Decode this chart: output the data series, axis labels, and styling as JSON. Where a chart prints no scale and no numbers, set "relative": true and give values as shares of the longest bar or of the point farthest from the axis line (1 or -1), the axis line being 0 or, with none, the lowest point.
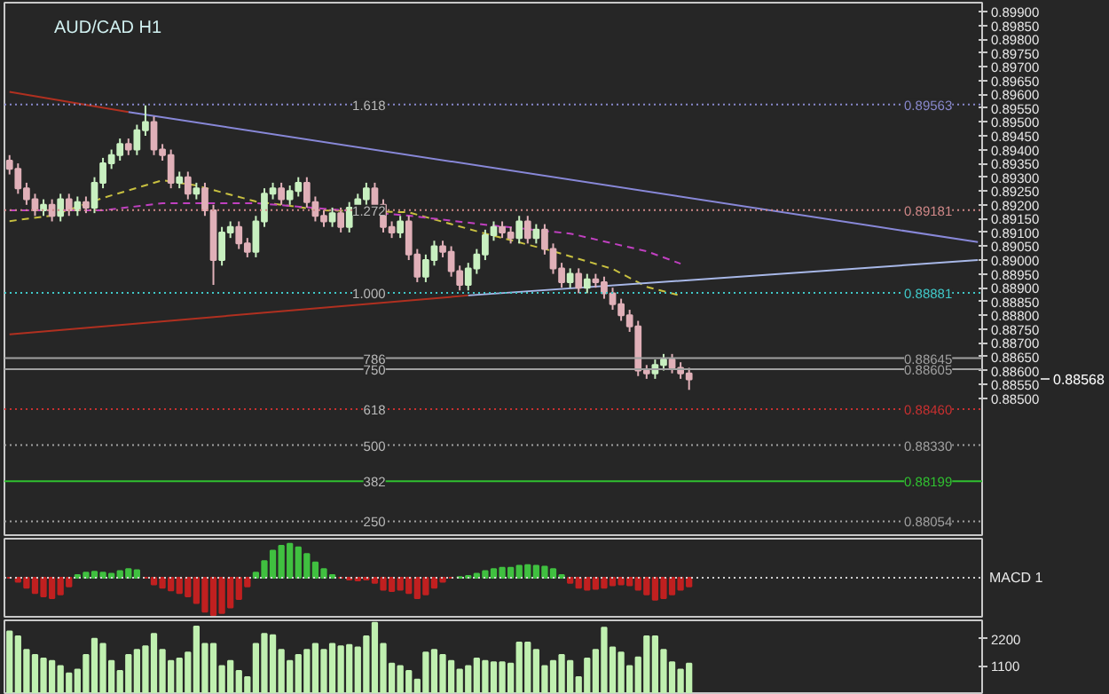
{
  "chart_data": [
    {
      "type": "candlestick",
      "title": "AUD/CAD H1",
      "tick_labels": "y",
      "categories": [
        null,
        null,
        null,
        null,
        null,
        null,
        null,
        null,
        null,
        null,
        null,
        null,
        null,
        null,
        null,
        null,
        null,
        null,
        null,
        null,
        null,
        null,
        null,
        null,
        null,
        null,
        null,
        null,
        null,
        null,
        null,
        null,
        null,
        null,
        null,
        null,
        null,
        null,
        null,
        null,
        null,
        null,
        null,
        null,
        null,
        null,
        null,
        null,
        null,
        null,
        null,
        null,
        null,
        null,
        null,
        null,
        null,
        null,
        null,
        null,
        null,
        null,
        null,
        null,
        null,
        null,
        null,
        null,
        null,
        null,
        null,
        null,
        null,
        null,
        null,
        null,
        null,
        null,
        null,
        null,
        null,
        null,
        null,
        null,
        null,
        null,
        null,
        null,
        null,
        null,
        null,
        null,
        null,
        null,
        null,
        null,
        null,
        null,
        null,
        null,
        null,
        null,
        null,
        null,
        null,
        null,
        null,
        null,
        null,
        null,
        null,
        null,
        null,
        null,
        null
      ],
      "ohlc": [
        [
          0.8936,
          0.8938,
          0.8931,
          0.8933
        ],
        [
          0.8933,
          0.8935,
          0.8924,
          0.8926
        ],
        [
          0.8926,
          0.8928,
          0.892,
          0.8922
        ],
        [
          0.8922,
          0.8924,
          0.8916,
          0.8918
        ],
        [
          0.8918,
          0.8922,
          0.8916,
          0.892
        ],
        [
          0.892,
          0.8922,
          0.8914,
          0.8916
        ],
        [
          0.8916,
          0.8924,
          0.8914,
          0.8922
        ],
        [
          0.8922,
          0.8924,
          0.8916,
          0.8918
        ],
        [
          0.8918,
          0.8923,
          0.8916,
          0.8921
        ],
        [
          0.8921,
          0.8923,
          0.8917,
          0.8919
        ],
        [
          0.8919,
          0.893,
          0.8917,
          0.8928
        ],
        [
          0.8928,
          0.8937,
          0.8926,
          0.8935
        ],
        [
          0.8935,
          0.894,
          0.8933,
          0.8938
        ],
        [
          0.8938,
          0.8944,
          0.8936,
          0.8942
        ],
        [
          0.8942,
          0.8944,
          0.8938,
          0.894
        ],
        [
          0.894,
          0.8949,
          0.8938,
          0.8947
        ],
        [
          0.8947,
          0.8956,
          0.8945,
          0.895
        ],
        [
          0.895,
          0.8952,
          0.8938,
          0.894
        ],
        [
          0.894,
          0.8942,
          0.8936,
          0.8938
        ],
        [
          0.8938,
          0.894,
          0.8926,
          0.8928
        ],
        [
          0.8928,
          0.8932,
          0.8926,
          0.893
        ],
        [
          0.893,
          0.8932,
          0.8922,
          0.8924
        ],
        [
          0.8924,
          0.8928,
          0.8922,
          0.8926
        ],
        [
          0.8926,
          0.8928,
          0.8916,
          0.8918
        ],
        [
          0.8918,
          0.892,
          0.8891,
          0.89
        ],
        [
          0.89,
          0.8912,
          0.8898,
          0.891
        ],
        [
          0.891,
          0.8914,
          0.8908,
          0.8912
        ],
        [
          0.8912,
          0.8914,
          0.8904,
          0.8906
        ],
        [
          0.8906,
          0.8908,
          0.8901,
          0.8903
        ],
        [
          0.8903,
          0.8916,
          0.8901,
          0.8914
        ],
        [
          0.8914,
          0.8926,
          0.8912,
          0.8924
        ],
        [
          0.8924,
          0.8928,
          0.8922,
          0.8926
        ],
        [
          0.8926,
          0.8928,
          0.892,
          0.8922
        ],
        [
          0.8922,
          0.8927,
          0.892,
          0.8925
        ],
        [
          0.8925,
          0.893,
          0.8923,
          0.8928
        ],
        [
          0.8928,
          0.893,
          0.8919,
          0.8921
        ],
        [
          0.8921,
          0.8923,
          0.8914,
          0.8916
        ],
        [
          0.8916,
          0.8918,
          0.8912,
          0.8914
        ],
        [
          0.8914,
          0.8919,
          0.8912,
          0.8917
        ],
        [
          0.8917,
          0.8919,
          0.891,
          0.8912
        ],
        [
          0.8912,
          0.8921,
          0.891,
          0.8919
        ],
        [
          0.8919,
          0.8924,
          0.8917,
          0.8922
        ],
        [
          0.8922,
          0.8928,
          0.892,
          0.8926
        ],
        [
          0.8926,
          0.8928,
          0.8918,
          0.892
        ],
        [
          0.892,
          0.8922,
          0.891,
          0.8912
        ],
        [
          0.8912,
          0.8914,
          0.8908,
          0.891
        ],
        [
          0.891,
          0.8916,
          0.8908,
          0.8914
        ],
        [
          0.8914,
          0.8916,
          0.89,
          0.8902
        ],
        [
          0.8902,
          0.8904,
          0.8892,
          0.8894
        ],
        [
          0.8894,
          0.8902,
          0.8892,
          0.89
        ],
        [
          0.89,
          0.8907,
          0.8898,
          0.8905
        ],
        [
          0.8905,
          0.8907,
          0.8901,
          0.8903
        ],
        [
          0.8903,
          0.8905,
          0.8894,
          0.8896
        ],
        [
          0.8896,
          0.8898,
          0.8889,
          0.8891
        ],
        [
          0.8891,
          0.8899,
          0.8889,
          0.8897
        ],
        [
          0.8897,
          0.8904,
          0.8895,
          0.8902
        ],
        [
          0.8902,
          0.8911,
          0.89,
          0.8909
        ],
        [
          0.8909,
          0.8914,
          0.8907,
          0.8912
        ],
        [
          0.8912,
          0.8914,
          0.8908,
          0.891
        ],
        [
          0.891,
          0.8912,
          0.8906,
          0.8908
        ],
        [
          0.8908,
          0.8916,
          0.8906,
          0.8914
        ],
        [
          0.8914,
          0.8916,
          0.8906,
          0.8908
        ],
        [
          0.8908,
          0.8913,
          0.8906,
          0.8911
        ],
        [
          0.8911,
          0.8913,
          0.8902,
          0.8904
        ],
        [
          0.8904,
          0.8906,
          0.8895,
          0.8897
        ],
        [
          0.8897,
          0.8899,
          0.889,
          0.8892
        ],
        [
          0.8892,
          0.8897,
          0.889,
          0.8895
        ],
        [
          0.8895,
          0.8897,
          0.8888,
          0.889
        ],
        [
          0.889,
          0.8895,
          0.8888,
          0.8893
        ],
        [
          0.8893,
          0.8895,
          0.889,
          0.8892
        ],
        [
          0.8892,
          0.8894,
          0.8886,
          0.8888
        ],
        [
          0.8888,
          0.889,
          0.8882,
          0.8884
        ],
        [
          0.8884,
          0.8886,
          0.8878,
          0.888
        ],
        [
          0.888,
          0.8882,
          0.8874,
          0.8876
        ],
        [
          0.8876,
          0.8878,
          0.8858,
          0.886
        ],
        [
          0.886,
          0.8862,
          0.8857,
          0.8859
        ],
        [
          0.8859,
          0.8864,
          0.8857,
          0.8862
        ],
        [
          0.8862,
          0.8866,
          0.886,
          0.8864
        ],
        [
          0.8864,
          0.8866,
          0.8859,
          0.8861
        ],
        [
          0.8861,
          0.8863,
          0.8857,
          0.8859
        ],
        [
          0.8859,
          0.8861,
          0.8853,
          0.88568
        ],
        null,
        null,
        null,
        null,
        null,
        null,
        null,
        null,
        null,
        null,
        null,
        null,
        null,
        null,
        null,
        null,
        null,
        null,
        null,
        null,
        null,
        null,
        null,
        null,
        null,
        null,
        null,
        null,
        null,
        null,
        null,
        null,
        null,
        null
      ],
      "ylim": [
        0.88004,
        0.89932
      ],
      "yticks": [
        {
          "value": 0.885,
          "label": "0.88500"
        },
        {
          "value": 0.8855,
          "label": "0.88550"
        },
        {
          "value": 0.886,
          "label": "0.88600"
        },
        {
          "value": 0.8865,
          "label": "0.88650"
        },
        {
          "value": 0.887,
          "label": "0.88700"
        },
        {
          "value": 0.8875,
          "label": "0.88750"
        },
        {
          "value": 0.888,
          "label": "0.88800"
        },
        {
          "value": 0.8885,
          "label": "0.88850"
        },
        {
          "value": 0.889,
          "label": "0.88900"
        },
        {
          "value": 0.8895,
          "label": "0.88950"
        },
        {
          "value": 0.89,
          "label": "0.89000"
        },
        {
          "value": 0.8905,
          "label": "0.89050"
        },
        {
          "value": 0.891,
          "label": "0.89100"
        },
        {
          "value": 0.8915,
          "label": "0.89150"
        },
        {
          "value": 0.892,
          "label": "0.89200"
        },
        {
          "value": 0.8925,
          "label": "0.89250"
        },
        {
          "value": 0.893,
          "label": "0.89300"
        },
        {
          "value": 0.8935,
          "label": "0.89350"
        },
        {
          "value": 0.894,
          "label": "0.89400"
        },
        {
          "value": 0.8945,
          "label": "0.89450"
        },
        {
          "value": 0.895,
          "label": "0.89500"
        },
        {
          "value": 0.8955,
          "label": "0.89550"
        },
        {
          "value": 0.896,
          "label": "0.89600"
        },
        {
          "value": 0.8965,
          "label": "0.89650"
        },
        {
          "value": 0.897,
          "label": "0.89700"
        },
        {
          "value": 0.8975,
          "label": "0.89750"
        },
        {
          "value": 0.898,
          "label": "0.89800"
        },
        {
          "value": 0.8985,
          "label": "0.89850"
        },
        {
          "value": 0.899,
          "label": "0.89900"
        }
      ],
      "series": [
        {
          "type": "line",
          "color": "#c8c040",
          "line_style": "dashed",
          "values": [
            0.89141,
            null,
            null,
            null,
            null,
            0.89161,
            null,
            null,
            null,
            null,
            null,
            0.89225,
            null,
            null,
            null,
            null,
            null,
            null,
            0.89289,
            null,
            null,
            null,
            0.8927,
            null,
            null,
            null,
            null,
            null,
            null,
            0.89212,
            null,
            null,
            null,
            null,
            null,
            null,
            null,
            0.8918,
            null,
            null,
            null,
            null,
            null,
            null,
            null,
            null,
            null,
            0.89173,
            null,
            null,
            null,
            null,
            null,
            null,
            null,
            null,
            0.89096,
            null,
            null,
            null,
            null,
            null,
            null,
            null,
            0.89032,
            null,
            null,
            null,
            null,
            null,
            null,
            0.88968,
            null,
            null,
            null,
            0.88903,
            null,
            null,
            null,
            0.88871,
            null,
            null,
            null,
            null,
            null,
            null,
            null,
            null,
            null,
            null,
            null,
            null,
            null,
            null,
            null,
            null,
            null,
            null,
            null,
            null,
            null,
            null,
            null,
            null,
            null,
            null,
            null,
            null,
            null,
            null,
            null,
            null,
            null,
            null,
            null
          ]
        },
        {
          "type": "line",
          "color": "#c040c0",
          "line_style": "dashed",
          "values": [
            0.8918,
            null,
            null,
            null,
            null,
            null,
            null,
            null,
            null,
            null,
            null,
            0.8918,
            null,
            null,
            null,
            null,
            null,
            null,
            0.89206,
            null,
            null,
            null,
            null,
            null,
            null,
            null,
            null,
            null,
            null,
            0.89206,
            null,
            null,
            null,
            null,
            null,
            null,
            null,
            0.89186,
            null,
            null,
            null,
            null,
            null,
            null,
            null,
            null,
            null,
            0.89161,
            null,
            null,
            null,
            null,
            null,
            null,
            null,
            null,
            0.89128,
            null,
            null,
            null,
            null,
            null,
            null,
            null,
            null,
            null,
            0.89096,
            null,
            null,
            null,
            null,
            null,
            null,
            null,
            null,
            0.89032,
            null,
            null,
            null,
            0.88987,
            null,
            null,
            null,
            null,
            null,
            null,
            null,
            null,
            null,
            null,
            null,
            null,
            null,
            null,
            null,
            null,
            null,
            null,
            null,
            null,
            null,
            null,
            null,
            null,
            null,
            null,
            null,
            null,
            null,
            null,
            null,
            null,
            null,
            null,
            null
          ]
        },
        {
          "type": "line",
          "color": "#b03020",
          "line_style": "solid",
          "values": [
            0.89609,
            null,
            null,
            null,
            null,
            null,
            null,
            null,
            null,
            null,
            null,
            null,
            null,
            null,
            0.89536,
            null,
            null,
            null,
            null,
            null,
            null,
            null,
            null,
            null,
            null,
            null,
            null,
            null,
            null,
            null,
            null,
            null,
            null,
            null,
            null,
            null,
            null,
            null,
            null,
            null,
            null,
            null,
            null,
            null,
            null,
            null,
            null,
            null,
            null,
            null,
            null,
            null,
            null,
            null,
            null,
            null,
            null,
            null,
            null,
            null,
            null,
            null,
            null,
            null,
            null,
            null,
            null,
            null,
            null,
            null,
            null,
            null,
            null,
            null,
            null,
            null,
            null,
            null,
            null,
            null,
            null,
            null,
            null,
            null,
            null,
            null,
            null,
            null,
            null,
            null,
            null,
            null,
            null,
            null,
            null,
            null,
            null,
            null,
            null,
            null,
            null,
            null,
            null,
            null,
            null,
            null,
            null,
            null,
            null,
            null,
            null,
            null,
            null,
            null,
            null
          ]
        },
        {
          "type": "line",
          "color": "#8888d8",
          "line_style": "solid",
          "values": [
            null,
            null,
            null,
            null,
            null,
            null,
            null,
            null,
            null,
            null,
            null,
            null,
            null,
            null,
            0.89536,
            null,
            null,
            null,
            null,
            null,
            null,
            null,
            null,
            null,
            null,
            null,
            null,
            null,
            null,
            null,
            null,
            null,
            null,
            null,
            null,
            null,
            null,
            null,
            null,
            null,
            null,
            null,
            null,
            null,
            null,
            null,
            null,
            null,
            null,
            null,
            null,
            null,
            null,
            null,
            null,
            null,
            null,
            null,
            null,
            null,
            null,
            null,
            null,
            null,
            null,
            null,
            null,
            null,
            null,
            null,
            null,
            null,
            null,
            null,
            null,
            null,
            null,
            null,
            null,
            null,
            null,
            null,
            null,
            null,
            null,
            null,
            null,
            null,
            null,
            null,
            null,
            null,
            null,
            null,
            null,
            null,
            null,
            null,
            null,
            null,
            null,
            null,
            null,
            null,
            null,
            null,
            null,
            null,
            null,
            null,
            null,
            null,
            null,
            null,
            0.89065
          ]
        },
        {
          "type": "line",
          "color": "#b03020",
          "line_style": "solid",
          "values": [
            0.88731,
            null,
            null,
            null,
            null,
            null,
            null,
            null,
            null,
            null,
            null,
            null,
            null,
            null,
            null,
            null,
            null,
            null,
            null,
            null,
            null,
            null,
            null,
            null,
            null,
            null,
            null,
            null,
            null,
            null,
            null,
            null,
            null,
            null,
            null,
            null,
            null,
            null,
            null,
            null,
            null,
            null,
            null,
            null,
            null,
            null,
            null,
            null,
            null,
            null,
            null,
            null,
            null,
            null,
            0.88872,
            null,
            null,
            null,
            null,
            null,
            null,
            null,
            null,
            null,
            null,
            null,
            null,
            null,
            null,
            null,
            null,
            null,
            null,
            null,
            null,
            null,
            null,
            null,
            null,
            null,
            null,
            null,
            null,
            null,
            null,
            null,
            null,
            null,
            null,
            null,
            null,
            null,
            null,
            null,
            null,
            null,
            null,
            null,
            null,
            null,
            null,
            null,
            null,
            null,
            null,
            null,
            null,
            null,
            null,
            null,
            null,
            null,
            null,
            null,
            null
          ]
        },
        {
          "type": "line",
          "color": "#a8b8e8",
          "line_style": "solid",
          "values": [
            null,
            null,
            null,
            null,
            null,
            null,
            null,
            null,
            null,
            null,
            null,
            null,
            null,
            null,
            null,
            null,
            null,
            null,
            null,
            null,
            null,
            null,
            null,
            null,
            null,
            null,
            null,
            null,
            null,
            null,
            null,
            null,
            null,
            null,
            null,
            null,
            null,
            null,
            null,
            null,
            null,
            null,
            null,
            null,
            null,
            null,
            null,
            null,
            null,
            null,
            null,
            null,
            null,
            null,
            0.88872,
            null,
            null,
            null,
            null,
            null,
            null,
            null,
            null,
            null,
            null,
            null,
            null,
            null,
            null,
            null,
            null,
            null,
            null,
            null,
            null,
            null,
            null,
            null,
            null,
            null,
            null,
            null,
            null,
            null,
            null,
            null,
            null,
            null,
            null,
            null,
            null,
            null,
            null,
            null,
            null,
            null,
            null,
            null,
            null,
            null,
            null,
            null,
            null,
            null,
            null,
            null,
            null,
            null,
            null,
            null,
            null,
            null,
            null,
            null,
            0.89
          ]
        }
      ],
      "ref_lines": [
        {
          "axis": "y",
          "value": 0.89563,
          "label": "0.89563",
          "color": "#8888cc",
          "line_style": "dotted"
        },
        {
          "axis": "y",
          "value": 0.89181,
          "label": "0.89181",
          "color": "#d08888",
          "line_style": "dotted"
        },
        {
          "axis": "y",
          "value": 0.88881,
          "label": "0.88881",
          "color": "#40c8c8",
          "line_style": "dotted"
        },
        {
          "axis": "y",
          "value": 0.88645,
          "label": "0.88645",
          "color": "#a0a0a0",
          "line_style": "solid"
        },
        {
          "axis": "y",
          "value": 0.88605,
          "label": "0.88605",
          "color": "#a0a0a0",
          "line_style": "solid"
        },
        {
          "axis": "y",
          "value": 0.8846,
          "label": "0.88460",
          "color": "#c83030",
          "line_style": "dotted"
        },
        {
          "axis": "y",
          "value": 0.8833,
          "label": "0.88330",
          "color": "#a0a0a0",
          "line_style": "dotted"
        },
        {
          "axis": "y",
          "value": 0.88199,
          "label": "0.88199",
          "color": "#30c030",
          "line_style": "solid"
        },
        {
          "axis": "y",
          "value": 0.88054,
          "label": "0.88054",
          "color": "#a0a0a0",
          "line_style": "dotted"
        }
      ],
      "annotations": [
        {
          "text": "1.618",
          "y": 0.89563
        },
        {
          "text": "1.272",
          "y": 0.89181
        },
        {
          "text": "1.000",
          "y": 0.88881
        },
        {
          "text": "786",
          "y": 0.88645
        },
        {
          "text": "750",
          "y": 0.88605
        },
        {
          "text": "618",
          "y": 0.8846
        },
        {
          "text": "500",
          "y": 0.8833
        },
        {
          "text": "382",
          "y": 0.88199
        },
        {
          "text": "250",
          "y": 0.88054
        },
        "0.88568"
      ]
    },
    {
      "type": "bar",
      "relative": true,
      "tick_labels": false,
      "annotations": [
        "MACD 1"
      ],
      "categories": [
        null,
        null,
        null,
        null,
        null,
        null,
        null,
        null,
        null,
        null,
        null,
        null,
        null,
        null,
        null,
        null,
        null,
        null,
        null,
        null,
        null,
        null,
        null,
        null,
        null,
        null,
        null,
        null,
        null,
        null,
        null,
        null,
        null,
        null,
        null,
        null,
        null,
        null,
        null,
        null,
        null,
        null,
        null,
        null,
        null,
        null,
        null,
        null,
        null,
        null,
        null,
        null,
        null,
        null,
        null,
        null,
        null,
        null,
        null,
        null,
        null,
        null,
        null,
        null,
        null,
        null,
        null,
        null,
        null,
        null,
        null,
        null,
        null,
        null,
        null,
        null,
        null,
        null,
        null,
        null,
        null,
        null,
        null,
        null,
        null,
        null,
        null,
        null,
        null,
        null,
        null,
        null,
        null,
        null,
        null,
        null,
        null,
        null,
        null,
        null,
        null,
        null,
        null,
        null,
        null,
        null,
        null,
        null,
        null,
        null,
        null,
        null,
        null,
        null,
        null
      ],
      "values": [
        0,
        -0.11,
        -0.27,
        -0.41,
        -0.5,
        -0.55,
        -0.45,
        -0.23,
        0.07,
        0.14,
        0.16,
        0.14,
        0.11,
        0.18,
        0.23,
        0.2,
        0,
        -0.18,
        -0.27,
        -0.34,
        -0.41,
        -0.5,
        -0.68,
        -0.91,
        -1,
        -0.95,
        -0.8,
        -0.57,
        -0.23,
        0.14,
        0.45,
        0.73,
        0.86,
        0.91,
        0.82,
        0.64,
        0.41,
        0.23,
        0.07,
        0,
        -0.05,
        -0.07,
        -0.05,
        -0.14,
        -0.32,
        -0.36,
        -0.32,
        -0.41,
        -0.55,
        -0.45,
        -0.27,
        -0.11,
        0,
        0.02,
        0.05,
        0.11,
        0.18,
        0.23,
        0.27,
        0.27,
        0.32,
        0.34,
        0.32,
        0.3,
        0.23,
        0.07,
        -0.14,
        -0.27,
        -0.32,
        -0.3,
        -0.27,
        -0.2,
        -0.18,
        -0.2,
        -0.32,
        -0.45,
        -0.59,
        -0.55,
        -0.45,
        -0.32,
        -0.23,
        null,
        null,
        null,
        null,
        null,
        null,
        null,
        null,
        null,
        null,
        null,
        null,
        null,
        null,
        null,
        null,
        null,
        null,
        null,
        null,
        null,
        null,
        null,
        null,
        null,
        null,
        null,
        null,
        null,
        null,
        null,
        null,
        null,
        null
      ],
      "colors": [
        "#c02020",
        "#c02020",
        "#c02020",
        "#c02020",
        "#c02020",
        "#c02020",
        "#c02020",
        "#c02020",
        "#40c040",
        "#40c040",
        "#40c040",
        "#40c040",
        "#40c040",
        "#40c040",
        "#40c040",
        "#40c040",
        "#c02020",
        "#c02020",
        "#c02020",
        "#c02020",
        "#c02020",
        "#c02020",
        "#c02020",
        "#c02020",
        "#c02020",
        "#c02020",
        "#c02020",
        "#c02020",
        "#c02020",
        "#40c040",
        "#40c040",
        "#40c040",
        "#40c040",
        "#40c040",
        "#40c040",
        "#40c040",
        "#40c040",
        "#40c040",
        "#40c040",
        "#c02020",
        "#c02020",
        "#c02020",
        "#c02020",
        "#c02020",
        "#c02020",
        "#c02020",
        "#c02020",
        "#c02020",
        "#c02020",
        "#c02020",
        "#c02020",
        "#c02020",
        "#c02020",
        "#40c040",
        "#40c040",
        "#40c040",
        "#40c040",
        "#40c040",
        "#40c040",
        "#40c040",
        "#40c040",
        "#40c040",
        "#40c040",
        "#40c040",
        "#40c040",
        "#40c040",
        "#c02020",
        "#c02020",
        "#c02020",
        "#c02020",
        "#c02020",
        "#c02020",
        "#c02020",
        "#c02020",
        "#c02020",
        "#c02020",
        "#c02020",
        "#c02020",
        "#c02020",
        "#c02020",
        "#c02020",
        null,
        null,
        null,
        null,
        null,
        null,
        null,
        null,
        null,
        null,
        null,
        null,
        null,
        null,
        null,
        null,
        null,
        null,
        null,
        null,
        null,
        null,
        null,
        null,
        null,
        null,
        null,
        null,
        null,
        null,
        null,
        null,
        null,
        null
      ],
      "ref_lines": [
        {
          "axis": "y",
          "value": 0,
          "color": "#d0d0d0",
          "line_style": "dotted"
        }
      ]
    },
    {
      "type": "bar",
      "tick_labels": "y",
      "color": "#c0f0b0",
      "categories": [
        null,
        null,
        null,
        null,
        null,
        null,
        null,
        null,
        null,
        null,
        null,
        null,
        null,
        null,
        null,
        null,
        null,
        null,
        null,
        null,
        null,
        null,
        null,
        null,
        null,
        null,
        null,
        null,
        null,
        null,
        null,
        null,
        null,
        null,
        null,
        null,
        null,
        null,
        null,
        null,
        null,
        null,
        null,
        null,
        null,
        null,
        null,
        null,
        null,
        null,
        null,
        null,
        null,
        null,
        null,
        null,
        null,
        null,
        null,
        null,
        null,
        null,
        null,
        null,
        null,
        null,
        null,
        null,
        null,
        null,
        null,
        null,
        null,
        null,
        null,
        null,
        null,
        null,
        null,
        null,
        null,
        null,
        null,
        null,
        null,
        null,
        null,
        null,
        null,
        null,
        null,
        null,
        null,
        null,
        null,
        null,
        null,
        null,
        null,
        null,
        null,
        null,
        null,
        null,
        null,
        null,
        null,
        null,
        null,
        null,
        null,
        null,
        null,
        null,
        null
      ],
      "ylim": [
        0,
        2950
      ],
      "yticks": [
        1100,
        2200
      ],
      "values": [
        2500,
        2300,
        1750,
        1550,
        1400,
        1300,
        1100,
        800,
        950,
        1550,
        2200,
        2000,
        1300,
        900,
        1550,
        1750,
        1900,
        2400,
        1750,
        1300,
        1400,
        1650,
        2700,
        2000,
        2000,
        1100,
        1300,
        900,
        650,
        2000,
        2400,
        2350,
        1750,
        1300,
        1550,
        1750,
        2000,
        1750,
        2000,
        1900,
        1950,
        1850,
        2300,
        2850,
        2000,
        1200,
        1100,
        900,
        550,
        1650,
        1750,
        1550,
        1300,
        950,
        1100,
        1400,
        1300,
        1250,
        1250,
        1200,
        2050,
        2050,
        1750,
        1100,
        1300,
        1550,
        1300,
        650,
        1400,
        1750,
        2650,
        1850,
        1650,
        1100,
        1450,
        2300,
        2300,
        1750,
        1250,
        950,
        1200,
        null,
        null,
        null,
        null,
        null,
        null,
        null,
        null,
        null,
        null,
        null,
        null,
        null,
        null,
        null,
        null,
        null,
        null,
        null,
        null,
        null,
        null,
        null,
        null,
        null,
        null,
        null,
        null,
        null,
        null,
        null,
        null,
        null,
        null
      ]
    }
  ]
}
